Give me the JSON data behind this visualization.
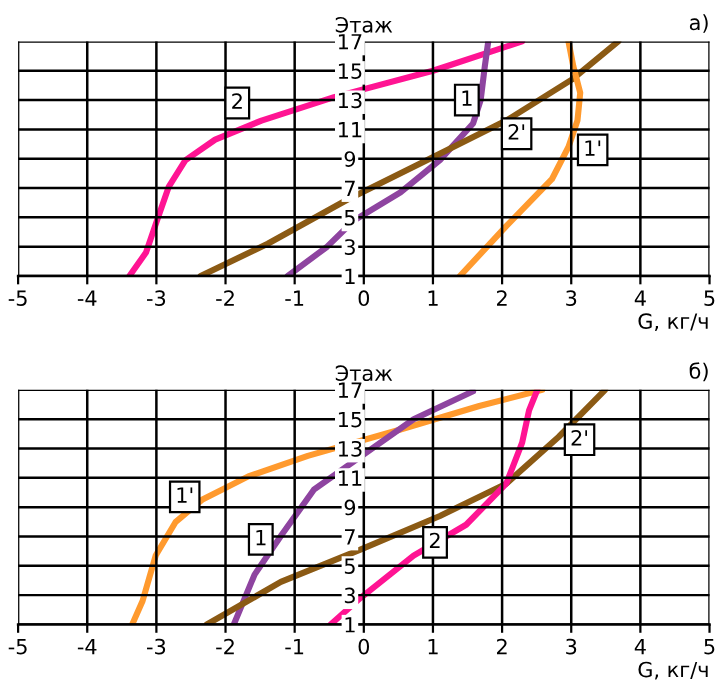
{
  "chart_data": [
    {
      "type": "line",
      "title": "а)",
      "xlabel": "G, кг/ч",
      "ylabel": "Этаж",
      "xlim": [
        -5,
        5
      ],
      "ylim": [
        1,
        17
      ],
      "xticks": [
        -5,
        -4,
        -3,
        -2,
        -1,
        0,
        1,
        2,
        3,
        4,
        5
      ],
      "yticks": [
        1,
        3,
        5,
        7,
        9,
        11,
        13,
        15,
        17
      ],
      "grid": true,
      "series": [
        {
          "name": "2",
          "color": "#ff1493",
          "x": [
            -3.39,
            -3.15,
            -2.99,
            -2.82,
            -2.58,
            -2.15,
            -1.48,
            -0.43,
            1.0,
            2.29
          ],
          "values": [
            1,
            2.6,
            4.8,
            7.1,
            8.9,
            10.3,
            11.6,
            13.2,
            15.0,
            17
          ]
        },
        {
          "name": "1",
          "color": "#8e44a0",
          "x": [
            -1.1,
            -0.53,
            -0.14,
            0.53,
            1.1,
            1.58,
            1.69,
            1.75,
            1.8
          ],
          "values": [
            1,
            3.0,
            4.8,
            6.7,
            8.9,
            11.4,
            13.0,
            15.3,
            17
          ]
        },
        {
          "name": "2'",
          "color": "#8b5a14",
          "x": [
            -2.36,
            -1.39,
            -0.24,
            0.91,
            2.06,
            3.01,
            3.68
          ],
          "values": [
            1,
            3.2,
            6.2,
            8.9,
            11.6,
            14.4,
            17
          ]
        },
        {
          "name": "1'",
          "color": "#ff9a2e",
          "x": [
            1.39,
            2.06,
            2.72,
            2.96,
            3.09,
            3.13,
            3.03,
            2.96
          ],
          "values": [
            1,
            4.4,
            7.6,
            9.8,
            11.6,
            13.5,
            15.3,
            17
          ]
        }
      ]
    },
    {
      "type": "line",
      "title": "б)",
      "xlabel": "G, кг/ч",
      "ylabel": "Этаж",
      "xlim": [
        -5,
        5
      ],
      "ylim": [
        1,
        17
      ],
      "xticks": [
        -5,
        -4,
        -3,
        -2,
        -1,
        0,
        1,
        2,
        3,
        4,
        5
      ],
      "yticks": [
        1,
        3,
        5,
        7,
        9,
        11,
        13,
        15,
        17
      ],
      "grid": true,
      "series": [
        {
          "name": "1'",
          "color": "#ff9a2e",
          "x": [
            -3.35,
            -3.2,
            -3.01,
            -2.72,
            -2.34,
            -1.67,
            -0.81,
            0.53,
            1.67,
            2.58
          ],
          "values": [
            1,
            2.6,
            5.7,
            8.0,
            9.5,
            11.1,
            12.5,
            14.3,
            15.9,
            17
          ]
        },
        {
          "name": "1",
          "color": "#8e44a0",
          "x": [
            -1.88,
            -1.58,
            -1.19,
            -0.72,
            0.72,
            1.58
          ],
          "values": [
            1,
            4.4,
            7.1,
            10.2,
            15.0,
            16.9
          ]
        },
        {
          "name": "2'",
          "color": "#8b5a14",
          "x": [
            -2.27,
            -1.2,
            -0.05,
            1.1,
            2.06,
            2.82,
            3.49
          ],
          "values": [
            1,
            3.9,
            6.1,
            8.4,
            10.6,
            13.8,
            17
          ]
        },
        {
          "name": "2",
          "color": "#ff1493",
          "x": [
            -0.48,
            -0.05,
            0.72,
            1.48,
            2.06,
            2.29,
            2.39,
            2.51
          ],
          "values": [
            1,
            2.8,
            5.7,
            7.8,
            10.6,
            13.4,
            15.6,
            17
          ]
        }
      ]
    }
  ]
}
